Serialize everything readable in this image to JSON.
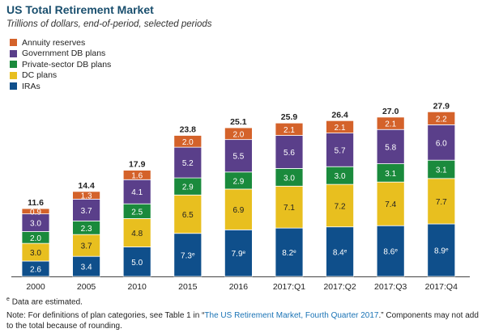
{
  "chart_data": {
    "type": "bar",
    "stacked": true,
    "title": "US Total Retirement Market",
    "subtitle": "Trillions of dollars, end-of-period, selected periods",
    "categories": [
      "2000",
      "2005",
      "2010",
      "2015",
      "2016",
      "2017:Q1",
      "2017:Q2",
      "2017:Q3",
      "2017:Q4"
    ],
    "series": [
      {
        "name": "IRAs",
        "color": "#0f4f8b",
        "values": [
          2.6,
          3.4,
          5.0,
          7.3,
          7.9,
          8.2,
          8.4,
          8.6,
          8.9
        ],
        "labels": [
          "2.6",
          "3.4",
          "5.0",
          "7.3",
          "7.9",
          "8.2",
          "8.4",
          "8.6",
          "8.9"
        ],
        "estimated": [
          false,
          false,
          false,
          true,
          true,
          true,
          true,
          true,
          true
        ]
      },
      {
        "name": "DC plans",
        "color": "#e8bf1f",
        "values": [
          3.0,
          3.7,
          4.8,
          6.5,
          6.9,
          7.1,
          7.2,
          7.4,
          7.7
        ],
        "labels": [
          "3.0",
          "3.7",
          "4.8",
          "6.5",
          "6.9",
          "7.1",
          "7.2",
          "7.4",
          "7.7"
        ]
      },
      {
        "name": "Private-sector DB plans",
        "color": "#1a8a3c",
        "values": [
          2.0,
          2.3,
          2.5,
          2.9,
          2.9,
          3.0,
          3.0,
          3.1,
          3.1
        ],
        "labels": [
          "2.0",
          "2.3",
          "2.5",
          "2.9",
          "2.9",
          "3.0",
          "3.0",
          "3.1",
          "3.1"
        ]
      },
      {
        "name": "Government DB plans",
        "color": "#5a3f8a",
        "values": [
          3.0,
          3.7,
          4.1,
          5.2,
          5.5,
          5.6,
          5.7,
          5.8,
          6.0
        ],
        "labels": [
          "3.0",
          "3.7",
          "4.1",
          "5.2",
          "5.5",
          "5.6",
          "5.7",
          "5.8",
          "6.0"
        ]
      },
      {
        "name": "Annuity reserves",
        "color": "#d4622a",
        "values": [
          0.9,
          1.3,
          1.6,
          2.0,
          2.0,
          2.1,
          2.1,
          2.1,
          2.2
        ],
        "labels": [
          "0.9",
          "1.3",
          "1.6",
          "2.0",
          "2.0",
          "2.1",
          "2.1",
          "2.1",
          "2.2"
        ]
      }
    ],
    "totals": [
      "11.6",
      "14.4",
      "17.9",
      "23.8",
      "25.1",
      "25.9",
      "26.4",
      "27.0",
      "27.9"
    ],
    "estimate_marker": "e",
    "legend_placement": "top-left",
    "grid": false
  },
  "legend_order": [
    "Annuity reserves",
    "Government DB plans",
    "Private-sector DB plans",
    "DC plans",
    "IRAs"
  ],
  "footnote": {
    "marker": "e",
    "text": "Data are estimated."
  },
  "note": {
    "prefix": "Note: For definitions of plan categories, see Table 1 in “",
    "link": "The US Retirement Market, Fourth Quarter 2017",
    "suffix": ".” Components may not add to the total because of rounding."
  }
}
